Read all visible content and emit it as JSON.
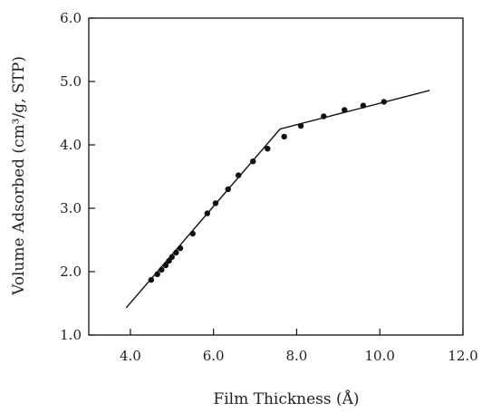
{
  "chart_data": {
    "type": "scatter",
    "xlabel": "Film Thickness (Å)",
    "ylabel": "Volume Adsorbed (cm³/g, STP)",
    "xlim": [
      3.0,
      12.0
    ],
    "ylim": [
      1.0,
      6.0
    ],
    "xticks": [
      4.0,
      6.0,
      8.0,
      10.0,
      12.0
    ],
    "xtick_labels": [
      "4.0",
      "6.0",
      "8.0",
      "10.0",
      "12.0"
    ],
    "yticks": [
      1.0,
      2.0,
      3.0,
      4.0,
      5.0,
      6.0
    ],
    "ytick_labels": [
      "1.0",
      "2.0",
      "3.0",
      "4.0",
      "5.0",
      "6.0"
    ],
    "grid": false,
    "series": [
      {
        "kind": "points",
        "color": "#111111",
        "x": [
          4.5,
          4.65,
          4.75,
          4.85,
          4.93,
          5.0,
          5.1,
          5.2,
          5.5,
          5.85,
          6.05,
          6.35,
          6.6,
          6.95,
          7.3,
          7.7,
          8.1,
          8.65,
          9.15,
          9.6,
          10.1
        ],
        "y": [
          1.87,
          1.96,
          2.03,
          2.1,
          2.17,
          2.23,
          2.3,
          2.37,
          2.6,
          2.92,
          3.08,
          3.3,
          3.52,
          3.74,
          3.94,
          4.13,
          4.3,
          4.45,
          4.55,
          4.62,
          4.68
        ]
      },
      {
        "kind": "line",
        "color": "#111111",
        "x": [
          3.9,
          7.6,
          11.2
        ],
        "y": [
          1.43,
          4.25,
          4.86
        ]
      }
    ]
  }
}
